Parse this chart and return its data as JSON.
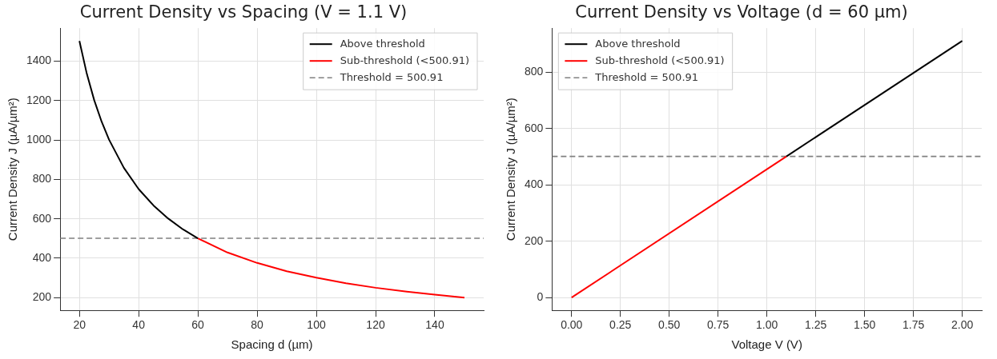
{
  "chart_data": [
    {
      "type": "line",
      "title": "Current Density vs Spacing (V = 1.1 V)",
      "xlabel": "Spacing d (µm)",
      "ylabel": "Current Density J (µA/µm²)",
      "xlim": [
        13.5,
        156.5
      ],
      "ylim": [
        135,
        1568
      ],
      "xticks": [
        20,
        40,
        60,
        80,
        100,
        120,
        140
      ],
      "yticks": [
        200,
        400,
        600,
        800,
        1000,
        1200,
        1400
      ],
      "grid": true,
      "legend": "top right",
      "marker": "none",
      "line_style": "solid",
      "series": [
        {
          "name": "Above threshold",
          "color": "#000000",
          "x": [
            20,
            22.5,
            25,
            27.5,
            30,
            35,
            40,
            45,
            50,
            55,
            60
          ],
          "values": [
            1503,
            1336,
            1202,
            1093,
            1002,
            859,
            751,
            668,
            601,
            546,
            501
          ]
        },
        {
          "name": "Sub-threshold (<500.91)",
          "color": "#ff0000",
          "x": [
            60,
            70,
            80,
            90,
            100,
            110,
            120,
            130,
            140,
            150
          ],
          "values": [
            501,
            429,
            376,
            334,
            301,
            273,
            250,
            231,
            215,
            200
          ]
        }
      ],
      "ref_lines": [
        {
          "axis": "y",
          "value": 500.91,
          "label": "Threshold = 500.91",
          "color": "#808080",
          "line_style": "dashed"
        }
      ]
    },
    {
      "type": "line",
      "title": "Current Density vs Voltage (d = 60 µm)",
      "xlabel": "Voltage V (V)",
      "ylabel": "Current Density J (µA/µm²)",
      "xlim": [
        -0.1,
        2.1
      ],
      "ylim": [
        -45.5,
        956
      ],
      "xticks": [
        {
          "value": 0,
          "label": "0.00"
        },
        {
          "value": 0.25,
          "label": "0.25"
        },
        {
          "value": 0.5,
          "label": "0.50"
        },
        {
          "value": 0.75,
          "label": "0.75"
        },
        {
          "value": 1,
          "label": "1.00"
        },
        {
          "value": 1.25,
          "label": "1.25"
        },
        {
          "value": 1.5,
          "label": "1.50"
        },
        {
          "value": 1.75,
          "label": "1.75"
        },
        {
          "value": 2,
          "label": "2.00"
        }
      ],
      "yticks": [
        0,
        200,
        400,
        600,
        800
      ],
      "grid": true,
      "legend": "top left",
      "marker": "none",
      "line_style": "solid",
      "series": [
        {
          "name": "Above threshold",
          "color": "#000000",
          "x": [
            1.1,
            2
          ],
          "values": [
            501,
            911
          ]
        },
        {
          "name": "Sub-threshold (<500.91)",
          "color": "#ff0000",
          "x": [
            0,
            1.1
          ],
          "values": [
            0,
            501
          ]
        }
      ],
      "ref_lines": [
        {
          "axis": "y",
          "value": 500.91,
          "label": "Threshold = 500.91",
          "color": "#808080",
          "line_style": "dashed"
        }
      ]
    }
  ]
}
